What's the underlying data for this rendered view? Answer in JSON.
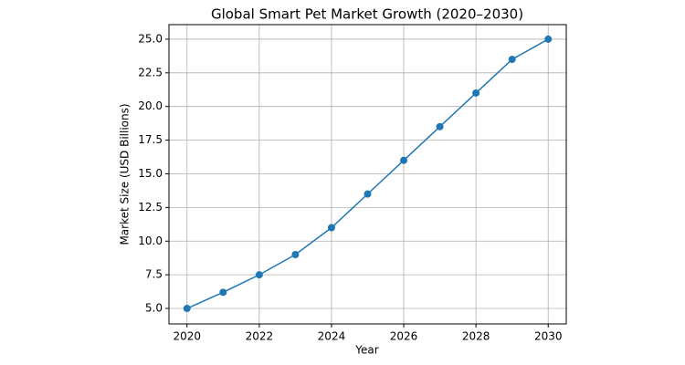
{
  "chart_data": {
    "type": "line",
    "title": "Global Smart Pet Market Growth (2020–2030)",
    "x_label": "Year",
    "y_label": "Market Size (USD Billions)",
    "x": [
      2020,
      2021,
      2022,
      2023,
      2024,
      2025,
      2026,
      2027,
      2028,
      2029,
      2030
    ],
    "values": [
      5.0,
      6.2,
      7.5,
      9.0,
      11.0,
      13.5,
      16.0,
      18.5,
      21.0,
      23.5,
      25.0
    ],
    "color": "#1f77b4",
    "xlim": [
      2019.5,
      2030.5
    ],
    "xticks": [
      2020,
      2022,
      2024,
      2026,
      2028,
      2030
    ],
    "ylim": [
      3.85,
      26.08
    ],
    "yticks": [
      {
        "value": 5,
        "label": "5.0"
      },
      7.5,
      {
        "value": 10,
        "label": "10.0"
      },
      12.5,
      {
        "value": 15,
        "label": "15.0"
      },
      17.5,
      {
        "value": 20,
        "label": "20.0"
      },
      22.5,
      {
        "value": 25,
        "label": "25.0"
      }
    ],
    "grid": true
  }
}
